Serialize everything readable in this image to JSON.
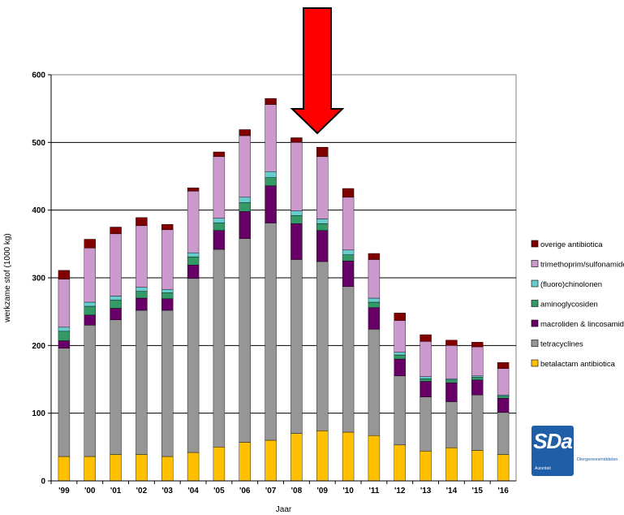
{
  "chart_data": {
    "type": "bar",
    "stacked": true,
    "xlabel": "Jaar",
    "ylabel": "werkzame stof (1000 kg)",
    "ylim": [
      0,
      600
    ],
    "yticks": [
      0,
      100,
      200,
      300,
      400,
      500,
      600
    ],
    "grid": true,
    "legend_position": "right",
    "categories": [
      "'99",
      "'00",
      "'01",
      "'02",
      "'03",
      "'04",
      "'05",
      "'06",
      "'07",
      "'08",
      "'09",
      "'10",
      "'11",
      "'12",
      "'13",
      "'14",
      "'15",
      "'16"
    ],
    "series": [
      {
        "name": "betalactam antibiotica",
        "color": "#ffc000",
        "values": [
          36,
          36,
          39,
          39,
          36,
          42,
          50,
          57,
          60,
          70,
          74,
          72,
          67,
          53,
          44,
          49,
          45,
          39
        ]
      },
      {
        "name": "tetracyclines",
        "color": "#969696",
        "values": [
          160,
          194,
          199,
          213,
          216,
          257,
          292,
          301,
          321,
          257,
          250,
          215,
          157,
          102,
          80,
          68,
          82,
          62
        ]
      },
      {
        "name": "macroliden & lincosamiden",
        "color": "#660066",
        "values": [
          11,
          15,
          17,
          18,
          17,
          20,
          28,
          40,
          55,
          53,
          46,
          38,
          32,
          25,
          23,
          28,
          22,
          21
        ]
      },
      {
        "name": "aminoglycosiden",
        "color": "#339966",
        "values": [
          14,
          13,
          12,
          10,
          9,
          12,
          11,
          13,
          12,
          12,
          10,
          9,
          8,
          6,
          4,
          4,
          4,
          3
        ]
      },
      {
        "name": "(fluoro)chinolonen",
        "color": "#66cccc",
        "values": [
          6,
          6,
          6,
          6,
          5,
          6,
          7,
          8,
          9,
          7,
          7,
          7,
          6,
          4,
          3,
          2,
          2,
          2
        ]
      },
      {
        "name": "trimethoprim/sulfonamiden",
        "color": "#cc99cc",
        "values": [
          71,
          80,
          92,
          91,
          88,
          91,
          91,
          91,
          99,
          101,
          92,
          78,
          57,
          47,
          52,
          49,
          43,
          39
        ]
      },
      {
        "name": "overige antibiotica",
        "color": "#800000",
        "values": [
          13,
          13,
          10,
          12,
          8,
          5,
          7,
          9,
          9,
          7,
          14,
          13,
          9,
          11,
          10,
          8,
          7,
          9
        ]
      }
    ],
    "annotations": [
      {
        "type": "arrow",
        "points_to": "'09",
        "direction": "down",
        "color": "#ff0000"
      }
    ]
  },
  "logo": {
    "mark": "SDa",
    "sub": "Autoriteit",
    "tagline": "Diergeneesmiddelen"
  }
}
